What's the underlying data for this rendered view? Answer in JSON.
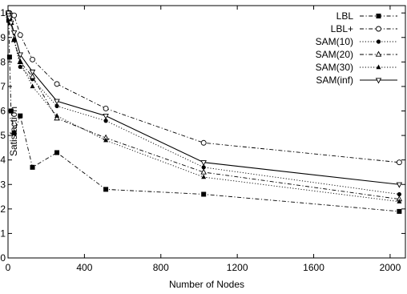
{
  "chart_data": {
    "type": "line",
    "title": "",
    "xlabel": "Number of Nodes",
    "ylabel": "Satisfaction",
    "xlim": [
      0,
      2080
    ],
    "ylim": [
      0,
      1.03
    ],
    "xticks": [
      0,
      400,
      800,
      1200,
      1600,
      2000
    ],
    "yticks": [
      0,
      0.1,
      0.2,
      0.3,
      0.4,
      0.5,
      0.6,
      0.7,
      0.8,
      0.9,
      1
    ],
    "grid": false,
    "legend_position": "top-right",
    "series": [
      {
        "name": "LBL",
        "marker": "filled-square",
        "dash": "dash-dot",
        "x": [
          2,
          4,
          8,
          16,
          32,
          64,
          128,
          256,
          512,
          1024,
          2048
        ],
        "y": [
          1.0,
          0.97,
          0.82,
          0.6,
          0.51,
          0.58,
          0.37,
          0.43,
          0.28,
          0.26,
          0.19
        ]
      },
      {
        "name": "LBL+",
        "marker": "open-circle",
        "dash": "dash-dot",
        "x": [
          2,
          4,
          8,
          16,
          32,
          64,
          128,
          256,
          512,
          1024,
          2048
        ],
        "y": [
          1.0,
          1.0,
          1.0,
          0.99,
          0.99,
          0.91,
          0.81,
          0.71,
          0.61,
          0.47,
          0.39
        ]
      },
      {
        "name": "SAM(10)",
        "marker": "filled-circle",
        "dash": "dotted",
        "x": [
          2,
          4,
          8,
          16,
          32,
          64,
          128,
          256,
          512,
          1024,
          2048
        ],
        "y": [
          1.0,
          0.99,
          0.97,
          0.96,
          0.89,
          0.78,
          0.73,
          0.62,
          0.56,
          0.37,
          0.26
        ]
      },
      {
        "name": "SAM(20)",
        "marker": "open-triangle",
        "dash": "dash-dot",
        "x": [
          2,
          4,
          8,
          16,
          32,
          64,
          128,
          256,
          512,
          1024,
          2048
        ],
        "y": [
          1.0,
          0.99,
          0.98,
          0.96,
          0.89,
          0.8,
          0.74,
          0.57,
          0.49,
          0.35,
          0.24
        ]
      },
      {
        "name": "SAM(30)",
        "marker": "filled-triangle",
        "dash": "dotted",
        "x": [
          2,
          4,
          8,
          16,
          32,
          64,
          128,
          256,
          512,
          1024,
          2048
        ],
        "y": [
          1.0,
          0.99,
          0.98,
          0.96,
          0.89,
          0.8,
          0.7,
          0.58,
          0.48,
          0.33,
          0.23
        ]
      },
      {
        "name": "SAM(inf)",
        "marker": "open-triangle-down",
        "dash": "solid",
        "x": [
          2,
          4,
          8,
          16,
          32,
          64,
          128,
          256,
          512,
          1024,
          2048
        ],
        "y": [
          1.0,
          0.99,
          0.98,
          0.96,
          0.92,
          0.83,
          0.76,
          0.64,
          0.58,
          0.39,
          0.3
        ]
      }
    ]
  }
}
